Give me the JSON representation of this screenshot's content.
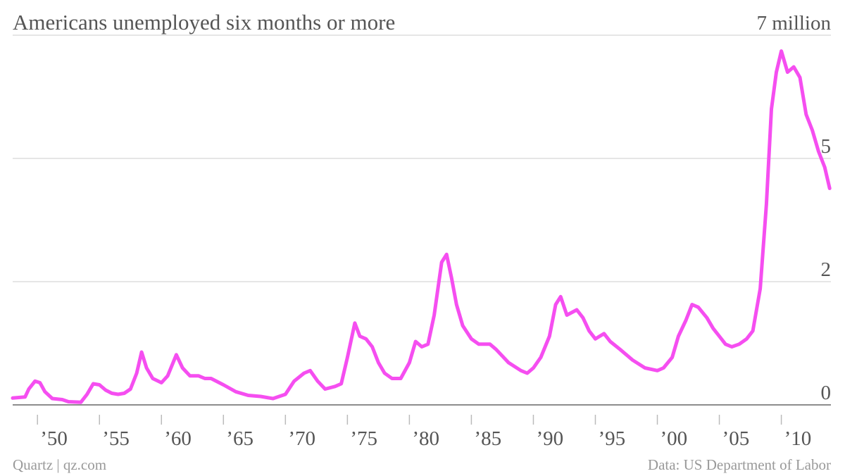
{
  "chart_data": {
    "type": "line",
    "title": "Americans unemployed six months or more",
    "source": "Data: US Department of Labor",
    "credit": "Quartz | qz.com",
    "xlim": [
      1948,
      2014
    ],
    "xticks": [
      {
        "value": 1950,
        "label": "’50"
      },
      {
        "value": 1955,
        "label": "’55"
      },
      {
        "value": 1960,
        "label": "’60"
      },
      {
        "value": 1965,
        "label": "’65"
      },
      {
        "value": 1970,
        "label": "’70"
      },
      {
        "value": 1975,
        "label": "’75"
      },
      {
        "value": 1980,
        "label": "’80"
      },
      {
        "value": 1985,
        "label": "’85"
      },
      {
        "value": 1990,
        "label": "’90"
      },
      {
        "value": 1995,
        "label": "’95"
      },
      {
        "value": 2000,
        "label": "’00"
      },
      {
        "value": 2005,
        "label": "’05"
      },
      {
        "value": 2010,
        "label": "’10"
      }
    ],
    "ylim": [
      0,
      7
    ],
    "yticks": [
      0,
      {
        "value": 2.333,
        "label": "2"
      },
      {
        "value": 4.667,
        "label": "5"
      },
      {
        "value": 7,
        "label": "7 million"
      }
    ],
    "grid": true,
    "series": [
      {
        "name": "Americans unemployed six months or more",
        "color": "#f54ef0",
        "x": [
          1948.0,
          1949.0,
          1949.3,
          1949.8,
          1950.2,
          1950.6,
          1951.2,
          1952.0,
          1952.5,
          1953.5,
          1954.0,
          1954.5,
          1955.0,
          1955.5,
          1956.0,
          1956.5,
          1957.0,
          1957.5,
          1958.0,
          1958.4,
          1958.8,
          1959.3,
          1960.0,
          1960.5,
          1961.2,
          1961.7,
          1962.3,
          1963.0,
          1963.5,
          1964.0,
          1965.0,
          1966.0,
          1967.0,
          1968.0,
          1969.0,
          1970.0,
          1970.7,
          1971.5,
          1972.0,
          1972.6,
          1973.2,
          1974.0,
          1974.5,
          1975.0,
          1975.6,
          1976.0,
          1976.5,
          1977.0,
          1977.5,
          1978.0,
          1978.6,
          1979.3,
          1980.0,
          1980.5,
          1981.0,
          1981.5,
          1982.0,
          1982.6,
          1983.0,
          1983.4,
          1983.8,
          1984.3,
          1985.0,
          1985.6,
          1986.5,
          1987.0,
          1988.0,
          1989.0,
          1989.5,
          1990.0,
          1990.6,
          1991.3,
          1991.8,
          1992.2,
          1992.7,
          1993.5,
          1994.0,
          1994.5,
          1995.0,
          1995.7,
          1996.2,
          1997.0,
          1997.5,
          1998.0,
          1999.0,
          2000.0,
          2000.5,
          2001.2,
          2001.7,
          2002.3,
          2002.8,
          2003.3,
          2004.0,
          2004.5,
          2005.0,
          2005.5,
          2006.0,
          2006.6,
          2007.2,
          2007.7,
          2008.3,
          2008.8,
          2009.2,
          2009.6,
          2010.0,
          2010.5,
          2011.0,
          2011.5,
          2012.0,
          2012.5,
          2013.0,
          2013.5,
          2013.9
        ],
        "values": [
          0.13,
          0.15,
          0.3,
          0.45,
          0.42,
          0.25,
          0.12,
          0.1,
          0.06,
          0.05,
          0.2,
          0.4,
          0.38,
          0.28,
          0.22,
          0.2,
          0.22,
          0.3,
          0.6,
          1.0,
          0.7,
          0.5,
          0.42,
          0.55,
          0.95,
          0.7,
          0.55,
          0.55,
          0.5,
          0.5,
          0.38,
          0.25,
          0.18,
          0.16,
          0.12,
          0.2,
          0.45,
          0.6,
          0.65,
          0.45,
          0.3,
          0.35,
          0.4,
          0.9,
          1.55,
          1.3,
          1.25,
          1.1,
          0.8,
          0.6,
          0.5,
          0.5,
          0.8,
          1.2,
          1.1,
          1.15,
          1.7,
          2.7,
          2.85,
          2.4,
          1.9,
          1.5,
          1.25,
          1.15,
          1.15,
          1.05,
          0.8,
          0.65,
          0.6,
          0.7,
          0.9,
          1.3,
          1.9,
          2.05,
          1.7,
          1.8,
          1.65,
          1.4,
          1.25,
          1.35,
          1.2,
          1.05,
          0.95,
          0.85,
          0.7,
          0.65,
          0.7,
          0.9,
          1.3,
          1.6,
          1.9,
          1.85,
          1.65,
          1.45,
          1.3,
          1.15,
          1.1,
          1.15,
          1.25,
          1.4,
          2.2,
          3.8,
          5.6,
          6.3,
          6.7,
          6.3,
          6.4,
          6.2,
          5.5,
          5.2,
          4.8,
          4.5,
          4.1
        ]
      }
    ]
  }
}
